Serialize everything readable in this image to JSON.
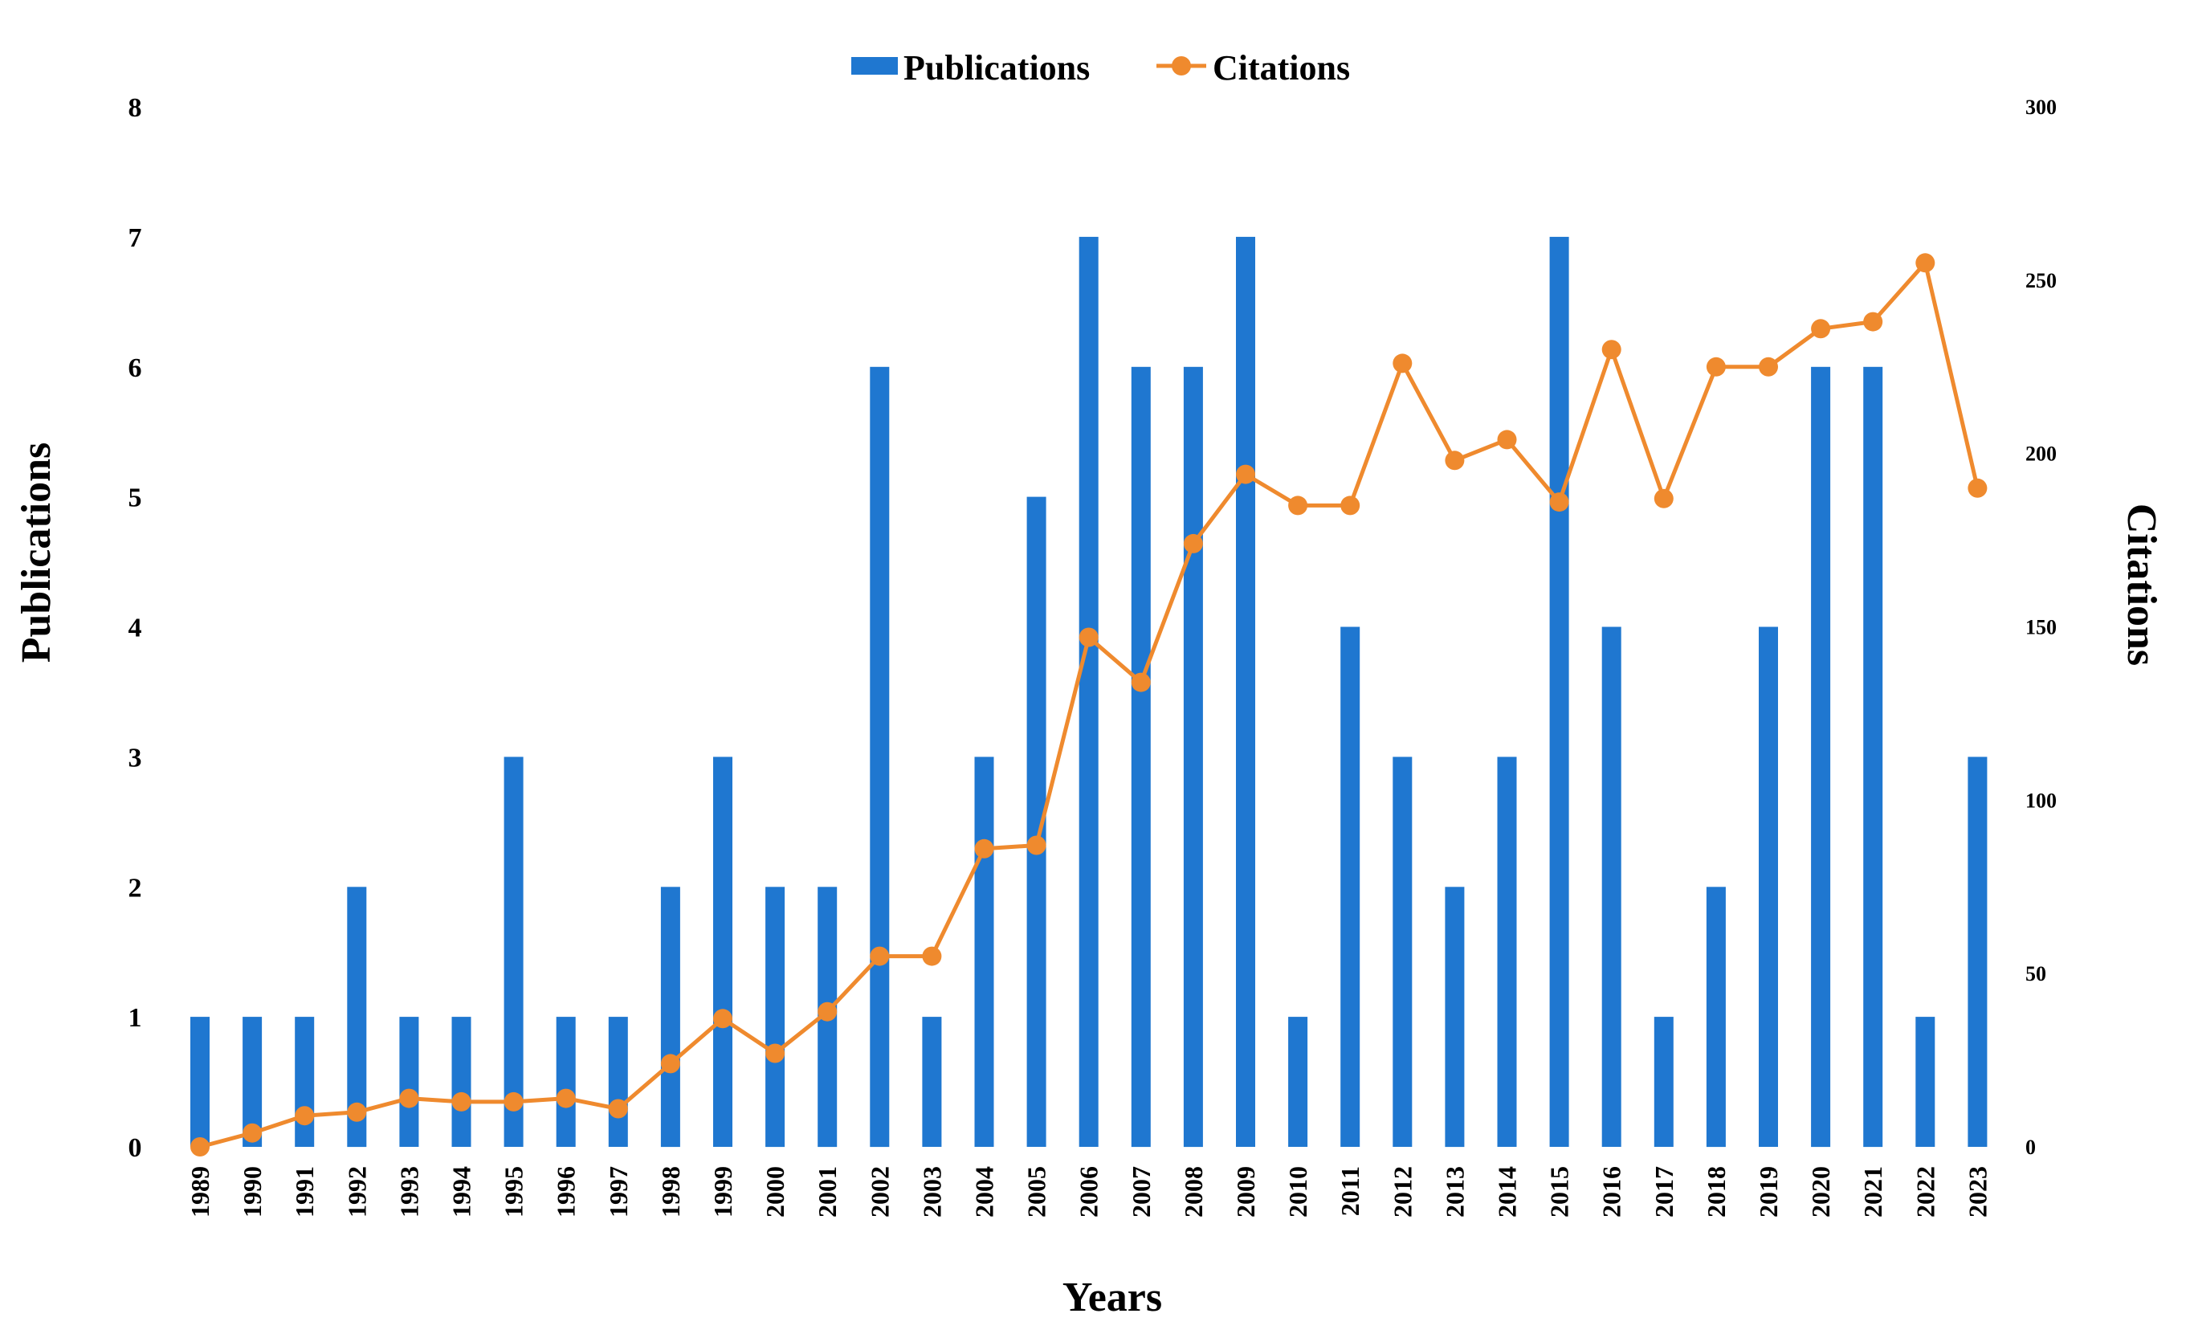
{
  "colors": {
    "bar": "#1f77d0",
    "line": "#ef8a2e"
  },
  "legend": {
    "publications_label": "Publications",
    "citations_label": "Citations",
    "placement": "top-center"
  },
  "chart_data": {
    "type": "bar",
    "title": "",
    "xlabel": "Years",
    "ylabel_left": "Publications",
    "ylabel_right": "Citations",
    "ylim_left": [
      0,
      8
    ],
    "ylim_right": [
      0,
      300
    ],
    "yticks_left": [
      "0",
      "1",
      "2",
      "3",
      "4",
      "5",
      "6",
      "7",
      "8"
    ],
    "yticks_right": [
      "0",
      "50",
      "100",
      "150",
      "200",
      "250",
      "300"
    ],
    "grid": false,
    "categories": [
      "1989",
      "1990",
      "1991",
      "1992",
      "1993",
      "1994",
      "1995",
      "1996",
      "1997",
      "1998",
      "1999",
      "2000",
      "2001",
      "2002",
      "2003",
      "2004",
      "2005",
      "2006",
      "2007",
      "2008",
      "2009",
      "2010",
      "2011",
      "2012",
      "2013",
      "2014",
      "2015",
      "2016",
      "2017",
      "2018",
      "2019",
      "2020",
      "2021",
      "2022",
      "2023"
    ],
    "series": [
      {
        "name": "Publications",
        "type": "bar",
        "axis": "left",
        "values": [
          1,
          1,
          1,
          2,
          1,
          1,
          3,
          1,
          1,
          2,
          3,
          2,
          2,
          6,
          1,
          3,
          5,
          7,
          6,
          6,
          7,
          1,
          4,
          3,
          2,
          3,
          7,
          4,
          1,
          2,
          4,
          6,
          6,
          1,
          3
        ]
      },
      {
        "name": "Citations",
        "type": "line",
        "axis": "right",
        "values": [
          0,
          4,
          9,
          10,
          14,
          13,
          13,
          14,
          11,
          24,
          37,
          27,
          39,
          55,
          55,
          86,
          87,
          147,
          134,
          174,
          194,
          185,
          185,
          226,
          198,
          204,
          186,
          230,
          187,
          225,
          225,
          236,
          238,
          255,
          190
        ]
      }
    ]
  }
}
